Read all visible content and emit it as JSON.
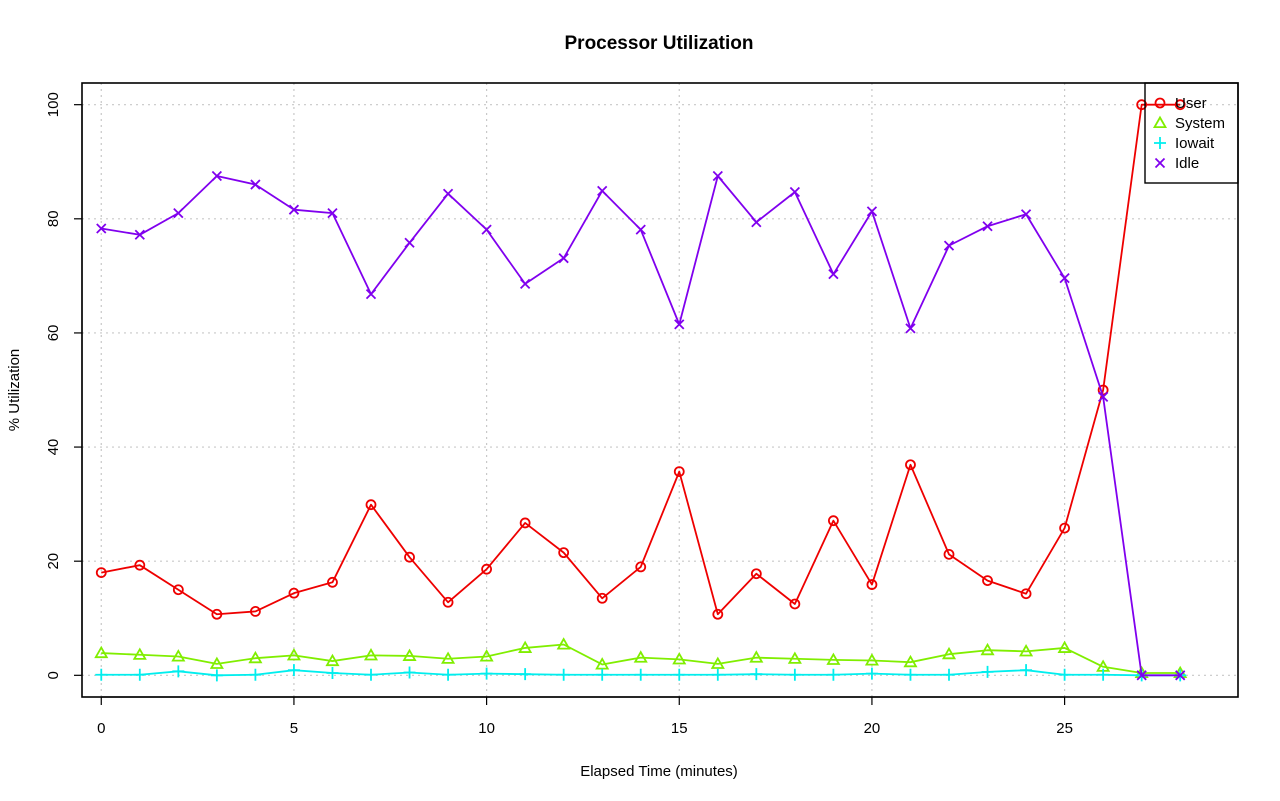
{
  "chart_data": {
    "type": "line",
    "title": "Processor Utilization",
    "xlabel": "Elapsed Time (minutes)",
    "ylabel": "% Utilization",
    "xlim": [
      -0.5,
      29.5
    ],
    "ylim": [
      -3.8,
      103.8
    ],
    "x_ticks": [
      0,
      5,
      10,
      15,
      20,
      25
    ],
    "y_ticks": [
      0,
      20,
      40,
      60,
      80,
      100
    ],
    "grid": true,
    "legend_position": "top-right",
    "x": [
      0,
      1,
      2,
      3,
      4,
      5,
      6,
      7,
      8,
      9,
      10,
      11,
      12,
      13,
      14,
      15,
      16,
      17,
      18,
      19,
      20,
      21,
      22,
      23,
      24,
      25,
      26,
      27,
      28
    ],
    "series": [
      {
        "name": "User",
        "color": "#ee0000",
        "marker": "circle",
        "values": [
          18.0,
          19.3,
          15.0,
          10.7,
          11.2,
          14.4,
          16.3,
          29.9,
          20.7,
          12.8,
          18.6,
          26.7,
          21.5,
          13.5,
          19.0,
          35.7,
          10.7,
          17.8,
          12.5,
          27.1,
          15.9,
          36.9,
          21.2,
          16.6,
          14.3,
          25.8,
          50.0,
          100.0,
          100.0
        ]
      },
      {
        "name": "System",
        "color": "#80ee00",
        "marker": "triangle",
        "values": [
          3.9,
          3.6,
          3.3,
          2.0,
          3.0,
          3.5,
          2.5,
          3.5,
          3.4,
          2.9,
          3.3,
          4.8,
          5.4,
          1.9,
          3.1,
          2.8,
          2.0,
          3.1,
          2.9,
          2.7,
          2.6,
          2.3,
          3.7,
          4.4,
          4.2,
          4.8,
          1.5,
          0.4,
          0.4
        ]
      },
      {
        "name": "Iowait",
        "color": "#00eeee",
        "marker": "plus",
        "values": [
          0.1,
          0.1,
          0.7,
          0.0,
          0.1,
          0.9,
          0.4,
          0.1,
          0.5,
          0.1,
          0.3,
          0.2,
          0.1,
          0.1,
          0.1,
          0.1,
          0.1,
          0.2,
          0.1,
          0.1,
          0.3,
          0.1,
          0.1,
          0.6,
          0.9,
          0.1,
          0.1,
          0.0,
          0.0
        ]
      },
      {
        "name": "Idle",
        "color": "#8000ee",
        "marker": "x",
        "values": [
          78.3,
          77.2,
          81.0,
          87.5,
          86.0,
          81.6,
          81.0,
          66.8,
          75.8,
          84.4,
          78.1,
          68.6,
          73.1,
          84.9,
          78.1,
          61.5,
          87.5,
          79.4,
          84.7,
          70.3,
          81.3,
          60.8,
          75.3,
          78.7,
          80.8,
          69.6,
          48.8,
          0.0,
          0.0
        ]
      }
    ]
  }
}
